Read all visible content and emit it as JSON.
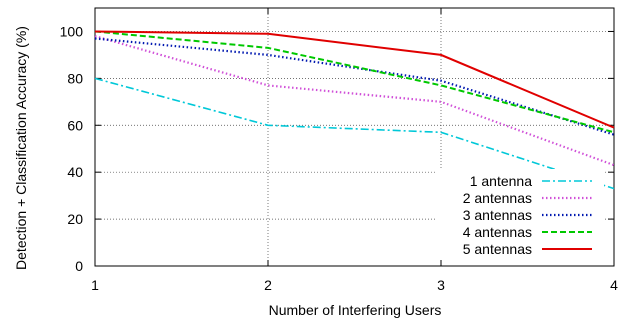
{
  "chart_data": {
    "type": "line",
    "xlabel": "Number of Interfering Users",
    "ylabel": "Detection + Classification Accuracy (%)",
    "x": [
      1,
      2,
      3,
      4
    ],
    "xlim": [
      1,
      4
    ],
    "ylim": [
      0,
      110
    ],
    "xticks": [
      "1",
      "2",
      "3",
      "4"
    ],
    "yticks": [
      "0",
      "20",
      "40",
      "60",
      "80",
      "100"
    ],
    "grid": true,
    "legend_position": "bottom-right",
    "series": [
      {
        "name": "1 antenna",
        "values": [
          80,
          60,
          57,
          33
        ],
        "color": "#00c8d8",
        "dash": "dashdot"
      },
      {
        "name": "2 antennas",
        "values": [
          98,
          77,
          70,
          43
        ],
        "color": "#d050d8",
        "dash": "dotted"
      },
      {
        "name": "3 antennas",
        "values": [
          97,
          90,
          79,
          56
        ],
        "color": "#0018b0",
        "dash": "dotted"
      },
      {
        "name": "4 antennas",
        "values": [
          100,
          93,
          77,
          57
        ],
        "color": "#00c800",
        "dash": "dashed"
      },
      {
        "name": "5 antennas",
        "values": [
          100,
          99,
          90,
          59
        ],
        "color": "#e00000",
        "dash": "solid"
      }
    ]
  }
}
